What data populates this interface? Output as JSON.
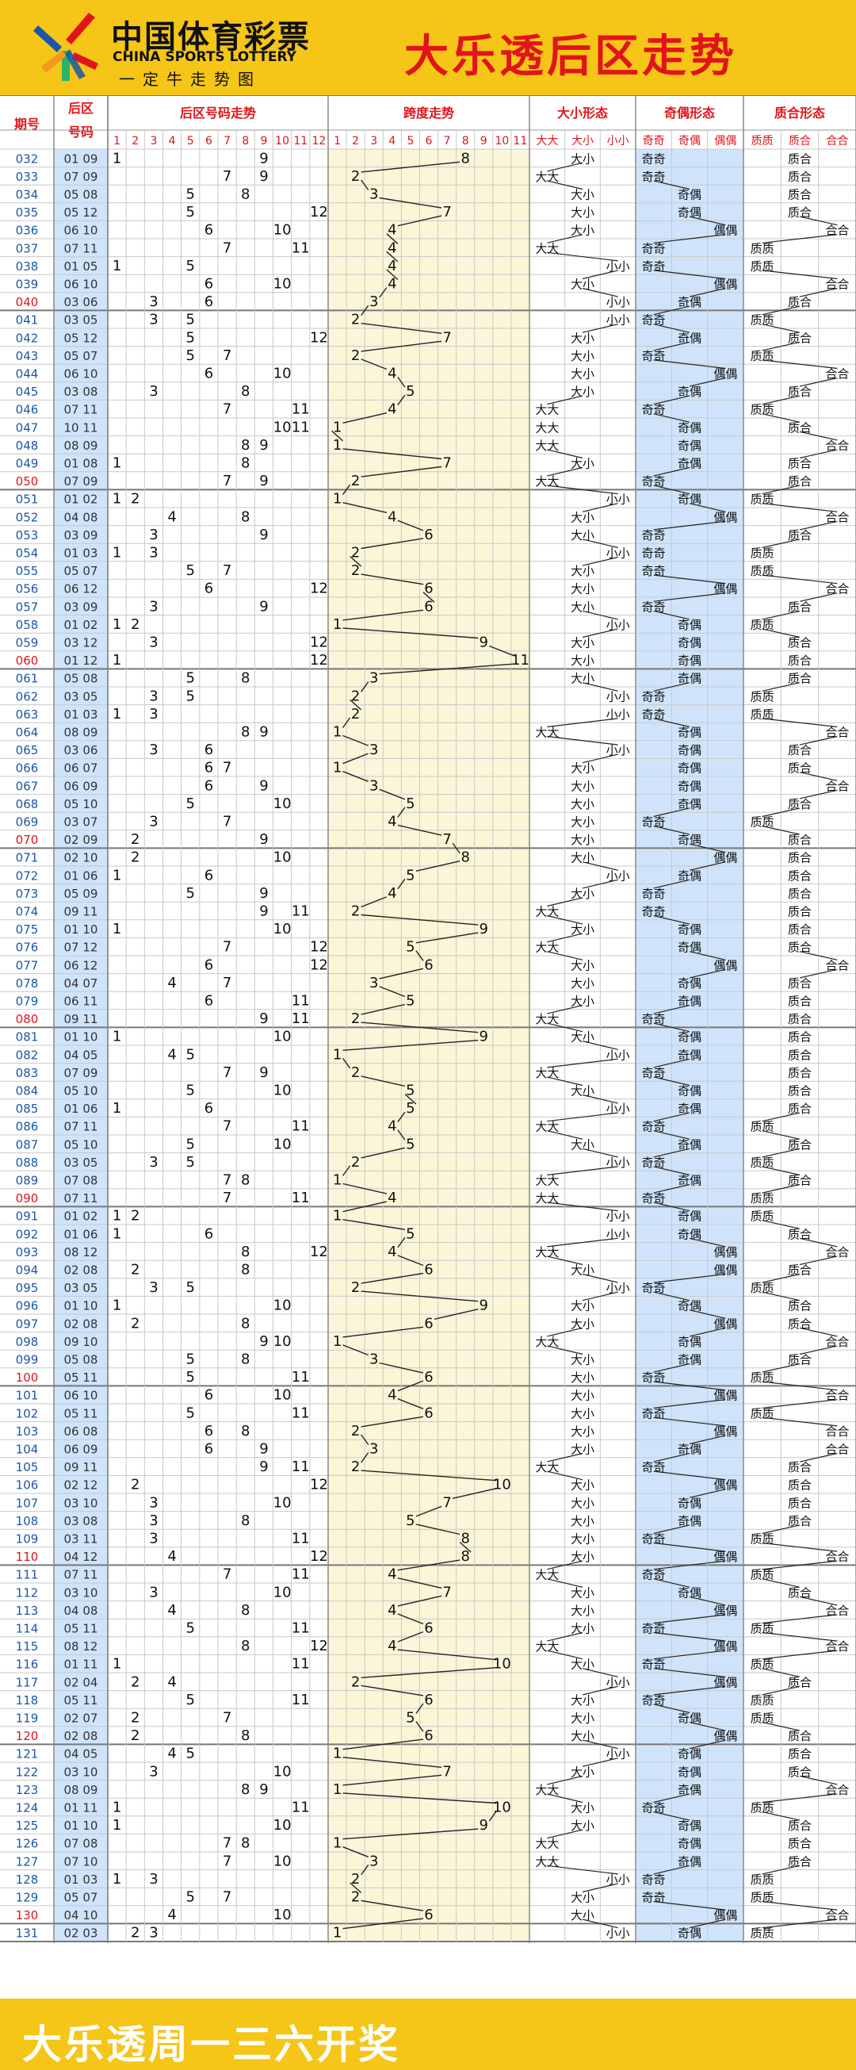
{
  "header": {
    "logo_cn": "中国体育彩票",
    "logo_en": "CHINA SPORTS LOTTERY",
    "logo_sub": "一定牛走势图",
    "logo_icon": "china-sports-lottery-logo"
  },
  "footer": {
    "text": "大乐透周一三六开奖"
  },
  "colors": {
    "background": "#f5c518",
    "title": "#e1141b",
    "header_red": "#e1141b",
    "period_blue": "#1a57a8",
    "last_period_red": "#e1141b",
    "span_band": "#fbf6d8",
    "oddeven_band": "#cfe4fb",
    "back_col_band": "#cfe4fb"
  },
  "chart_data": {
    "type": "table",
    "title": "大乐透后区走势",
    "columns": {
      "period": "期号",
      "back": "后区号码",
      "trend": "后区号码走势",
      "span": "跨度走势",
      "bigsmall": "大小形态",
      "oddeven": "奇偶形态",
      "primecomp": "质合形态"
    },
    "ball_numbers": [
      "1",
      "2",
      "3",
      "4",
      "5",
      "6",
      "7",
      "8",
      "9",
      "10",
      "11",
      "12"
    ],
    "span_numbers": [
      "1",
      "2",
      "3",
      "4",
      "5",
      "6",
      "7",
      "8",
      "9",
      "10",
      "11"
    ],
    "bigsmall_labels": [
      "大大",
      "大小",
      "小小"
    ],
    "oddeven_labels": [
      "奇奇",
      "奇偶",
      "偶偶"
    ],
    "primecomp_labels": [
      "质质",
      "质合",
      "合合"
    ],
    "draws": [
      [
        "032",
        "01 09"
      ],
      [
        "033",
        "07 09"
      ],
      [
        "034",
        "05 08"
      ],
      [
        "035",
        "05 12"
      ],
      [
        "036",
        "06 10"
      ],
      [
        "037",
        "07 11"
      ],
      [
        "038",
        "01 05"
      ],
      [
        "039",
        "06 10"
      ],
      [
        "040",
        "03 06"
      ],
      [
        "041",
        "03 05"
      ],
      [
        "042",
        "05 12"
      ],
      [
        "043",
        "05 07"
      ],
      [
        "044",
        "06 10"
      ],
      [
        "045",
        "03 08"
      ],
      [
        "046",
        "07 11"
      ],
      [
        "047",
        "10 11"
      ],
      [
        "048",
        "08 09"
      ],
      [
        "049",
        "01 08"
      ],
      [
        "050",
        "07 09"
      ],
      [
        "051",
        "01 02"
      ],
      [
        "052",
        "04 08"
      ],
      [
        "053",
        "03 09"
      ],
      [
        "054",
        "01 03"
      ],
      [
        "055",
        "05 07"
      ],
      [
        "056",
        "06 12"
      ],
      [
        "057",
        "03 09"
      ],
      [
        "058",
        "01 02"
      ],
      [
        "059",
        "03 12"
      ],
      [
        "060",
        "01 12"
      ],
      [
        "061",
        "05 08"
      ],
      [
        "062",
        "03 05"
      ],
      [
        "063",
        "01 03"
      ],
      [
        "064",
        "08 09"
      ],
      [
        "065",
        "03 06"
      ],
      [
        "066",
        "06 07"
      ],
      [
        "067",
        "06 09"
      ],
      [
        "068",
        "05 10"
      ],
      [
        "069",
        "03 07"
      ],
      [
        "070",
        "02 09"
      ],
      [
        "071",
        "02 10"
      ],
      [
        "072",
        "01 06"
      ],
      [
        "073",
        "05 09"
      ],
      [
        "074",
        "09 11"
      ],
      [
        "075",
        "01 10"
      ],
      [
        "076",
        "07 12"
      ],
      [
        "077",
        "06 12"
      ],
      [
        "078",
        "04 07"
      ],
      [
        "079",
        "06 11"
      ],
      [
        "080",
        "09 11"
      ],
      [
        "081",
        "01 10"
      ],
      [
        "082",
        "04 05"
      ],
      [
        "083",
        "07 09"
      ],
      [
        "084",
        "05 10"
      ],
      [
        "085",
        "01 06"
      ],
      [
        "086",
        "07 11"
      ],
      [
        "087",
        "05 10"
      ],
      [
        "088",
        "03 05"
      ],
      [
        "089",
        "07 08"
      ],
      [
        "090",
        "07 11"
      ],
      [
        "091",
        "01 02"
      ],
      [
        "092",
        "01 06"
      ],
      [
        "093",
        "08 12"
      ],
      [
        "094",
        "02 08"
      ],
      [
        "095",
        "03 05"
      ],
      [
        "096",
        "01 10"
      ],
      [
        "097",
        "02 08"
      ],
      [
        "098",
        "09 10"
      ],
      [
        "099",
        "05 08"
      ],
      [
        "100",
        "05 11"
      ],
      [
        "101",
        "06 10"
      ],
      [
        "102",
        "05 11"
      ],
      [
        "103",
        "06 08"
      ],
      [
        "104",
        "06 09"
      ],
      [
        "105",
        "09 11"
      ],
      [
        "106",
        "02 12"
      ],
      [
        "107",
        "03 10"
      ],
      [
        "108",
        "03 08"
      ],
      [
        "109",
        "03 11"
      ],
      [
        "110",
        "04 12"
      ],
      [
        "111",
        "07 11"
      ],
      [
        "112",
        "03 10"
      ],
      [
        "113",
        "04 08"
      ],
      [
        "114",
        "05 11"
      ],
      [
        "115",
        "08 12"
      ],
      [
        "116",
        "01 11"
      ],
      [
        "117",
        "02 04"
      ],
      [
        "118",
        "05 11"
      ],
      [
        "119",
        "02 07"
      ],
      [
        "120",
        "02 08"
      ],
      [
        "121",
        "04 05"
      ],
      [
        "122",
        "03 10"
      ],
      [
        "123",
        "08 09"
      ],
      [
        "124",
        "01 11"
      ],
      [
        "125",
        "01 10"
      ],
      [
        "126",
        "07 08"
      ],
      [
        "127",
        "07 10"
      ],
      [
        "128",
        "01 03"
      ],
      [
        "129",
        "05 07"
      ],
      [
        "130",
        "04 10"
      ],
      [
        "131",
        "02 03"
      ]
    ]
  }
}
